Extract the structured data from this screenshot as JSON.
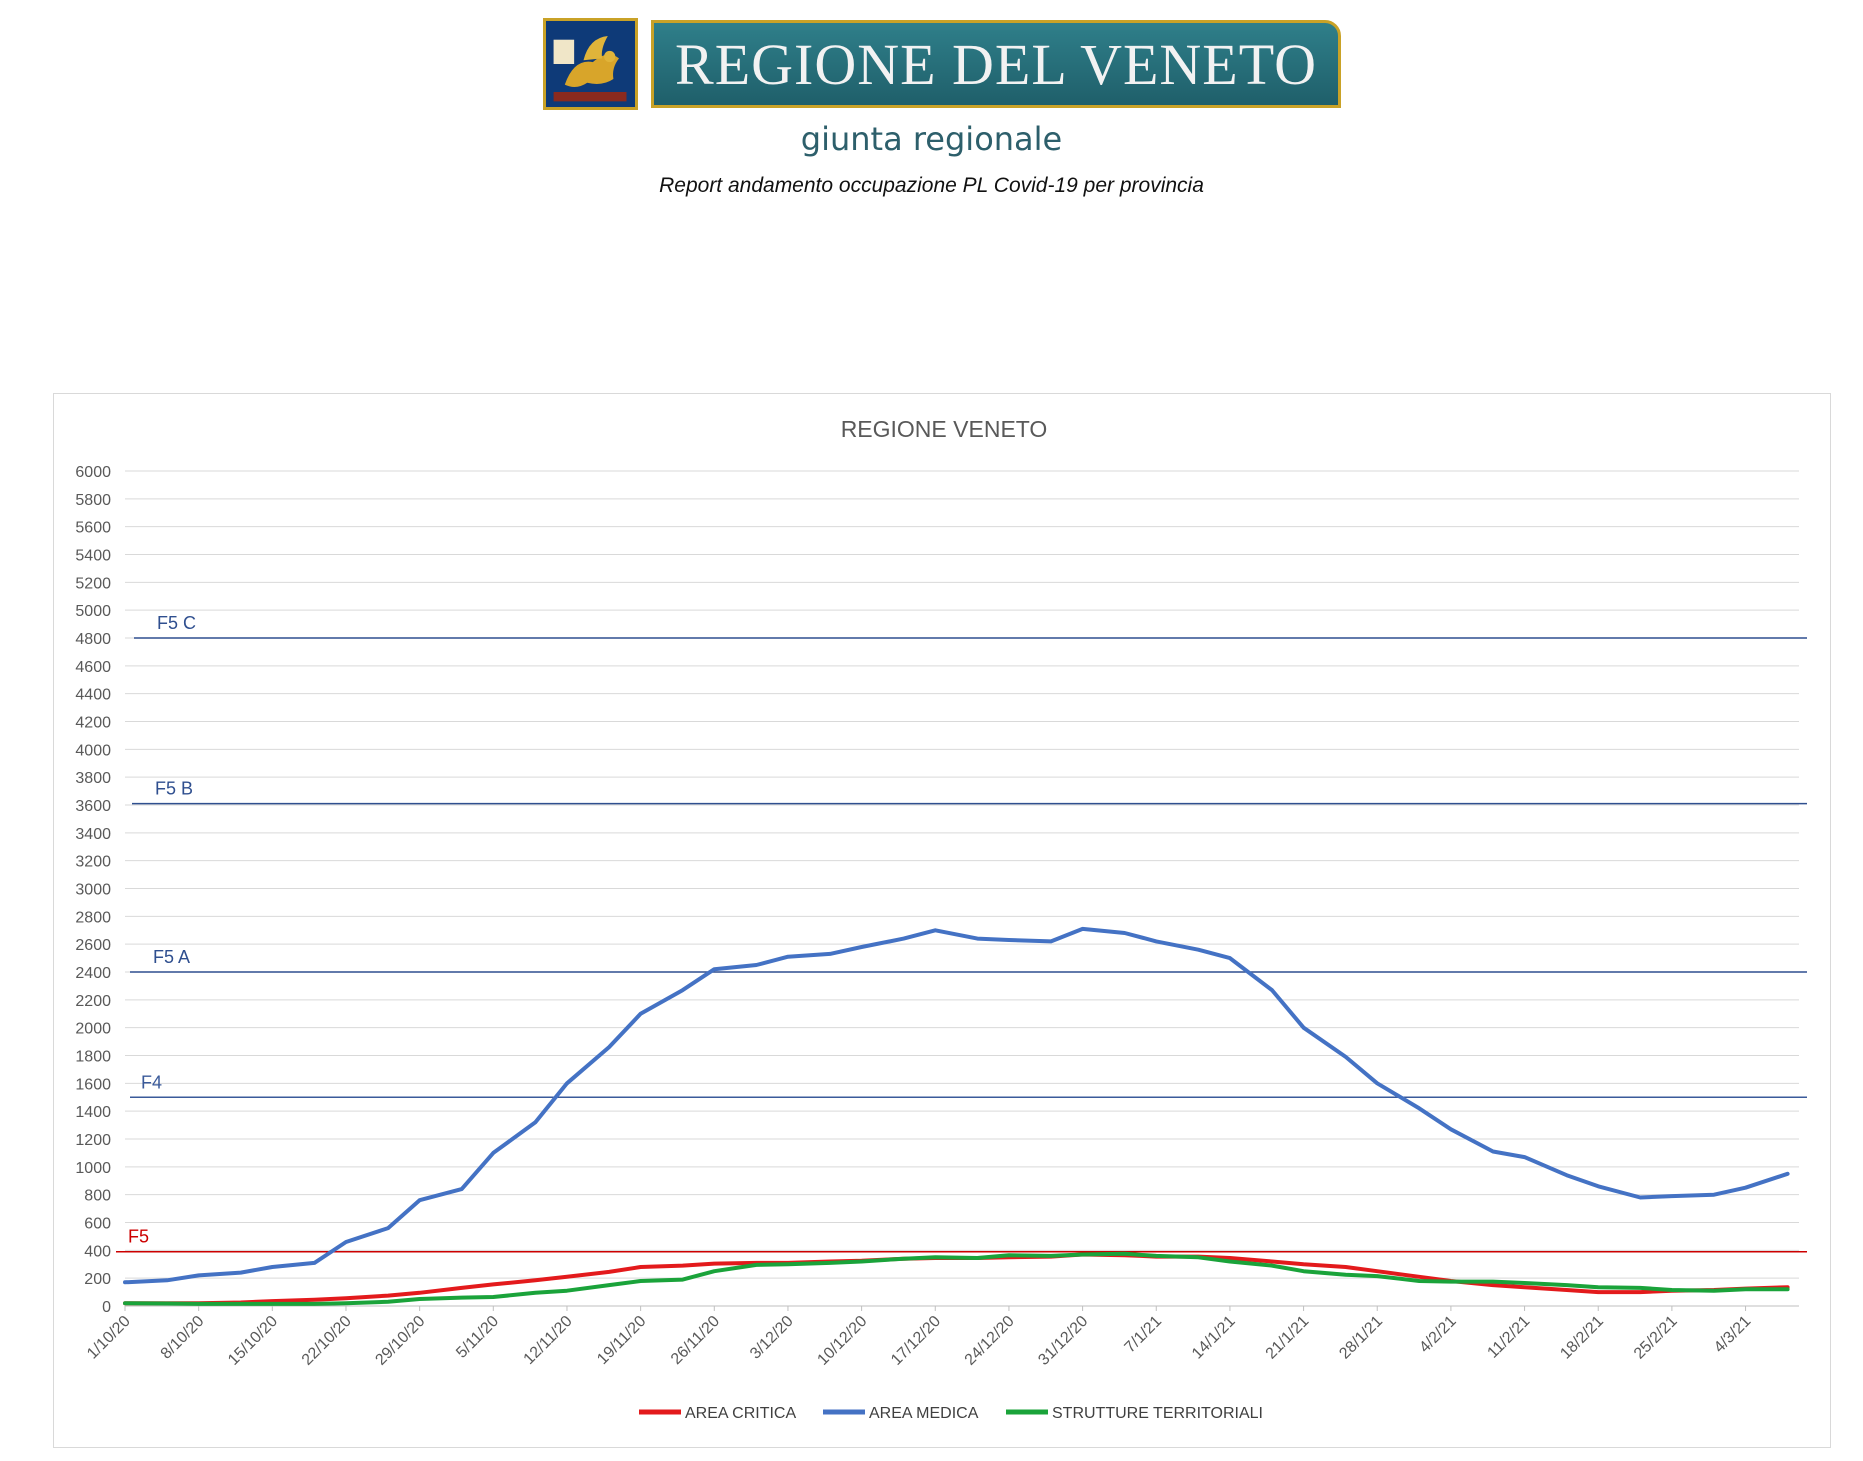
{
  "header": {
    "logo_text": "REGIONE DEL VENETO",
    "subtitle": "giunta regionale",
    "report_title": "Report andamento occupazione PL Covid-19 per provincia"
  },
  "chart_data": {
    "type": "line",
    "title": "REGIONE VENETO",
    "xlabel": "",
    "ylabel": "",
    "ylim": [
      0,
      6000
    ],
    "yticks": [
      0,
      200,
      400,
      600,
      800,
      1000,
      1200,
      1400,
      1600,
      1800,
      2000,
      2200,
      2400,
      2600,
      2800,
      3000,
      3200,
      3400,
      3600,
      3800,
      4000,
      4200,
      4400,
      4600,
      4800,
      5000,
      5200,
      5400,
      5600,
      5800,
      6000
    ],
    "xticks": [
      "1/10/20",
      "8/10/20",
      "15/10/20",
      "22/10/20",
      "29/10/20",
      "5/11/20",
      "12/11/20",
      "19/11/20",
      "26/11/20",
      "3/12/20",
      "10/12/20",
      "17/12/20",
      "24/12/20",
      "31/12/20",
      "7/1/21",
      "14/1/21",
      "21/1/21",
      "28/1/21",
      "4/2/21",
      "11/2/21",
      "18/2/21",
      "25/2/21",
      "4/3/21"
    ],
    "grid": true,
    "legend_position": "bottom",
    "x": [
      "1/10/20",
      "5/10/20",
      "8/10/20",
      "12/10/20",
      "15/10/20",
      "19/10/20",
      "22/10/20",
      "26/10/20",
      "29/10/20",
      "2/11/20",
      "5/11/20",
      "9/11/20",
      "12/11/20",
      "16/11/20",
      "19/11/20",
      "23/11/20",
      "26/11/20",
      "30/11/20",
      "3/12/20",
      "7/12/20",
      "10/12/20",
      "14/12/20",
      "17/12/20",
      "21/12/20",
      "24/12/20",
      "28/12/20",
      "31/12/20",
      "4/1/21",
      "7/1/21",
      "11/1/21",
      "14/1/21",
      "18/1/21",
      "21/1/21",
      "25/1/21",
      "28/1/21",
      "1/2/21",
      "4/2/21",
      "8/2/21",
      "11/2/21",
      "15/2/21",
      "18/2/21",
      "22/2/21",
      "25/2/21",
      "1/3/21",
      "4/3/21",
      "8/3/21"
    ],
    "series": [
      {
        "name": "AREA CRITICA",
        "color": "#e31a1c",
        "values": [
          20,
          20,
          20,
          25,
          35,
          45,
          55,
          75,
          95,
          130,
          155,
          185,
          210,
          245,
          280,
          290,
          305,
          310,
          310,
          320,
          325,
          340,
          345,
          345,
          350,
          355,
          370,
          365,
          355,
          355,
          345,
          320,
          300,
          280,
          250,
          210,
          180,
          150,
          135,
          115,
          100,
          100,
          110,
          115,
          125,
          135
        ]
      },
      {
        "name": "AREA MEDICA",
        "color": "#4472c4",
        "values": [
          170,
          185,
          220,
          240,
          280,
          310,
          460,
          560,
          760,
          840,
          1100,
          1320,
          1600,
          1860,
          2100,
          2270,
          2420,
          2450,
          2510,
          2530,
          2580,
          2640,
          2700,
          2640,
          2630,
          2620,
          2710,
          2680,
          2620,
          2560,
          2500,
          2270,
          2000,
          1790,
          1600,
          1420,
          1270,
          1110,
          1070,
          940,
          860,
          780,
          790,
          800,
          850,
          950
        ]
      },
      {
        "name": "STRUTTURE TERRITORIALI",
        "color": "#1aa33a",
        "values": [
          20,
          18,
          15,
          15,
          15,
          15,
          20,
          30,
          50,
          60,
          65,
          95,
          110,
          150,
          180,
          190,
          250,
          295,
          300,
          310,
          320,
          340,
          350,
          345,
          365,
          360,
          370,
          375,
          360,
          350,
          320,
          290,
          250,
          225,
          215,
          180,
          175,
          175,
          165,
          150,
          135,
          130,
          115,
          110,
          120,
          120
        ]
      }
    ],
    "threshold_lines": [
      {
        "label": "F5 C",
        "value": 4800,
        "color": "#2f4f8f"
      },
      {
        "label": "F5 B",
        "value": 3610,
        "color": "#2f4f8f"
      },
      {
        "label": "F5 A",
        "value": 2400,
        "color": "#2f4f8f"
      },
      {
        "label": "F4",
        "value": 1500,
        "color": "#3a5a9a"
      },
      {
        "label": "F5",
        "value": 390,
        "color": "#cc0000"
      }
    ]
  }
}
